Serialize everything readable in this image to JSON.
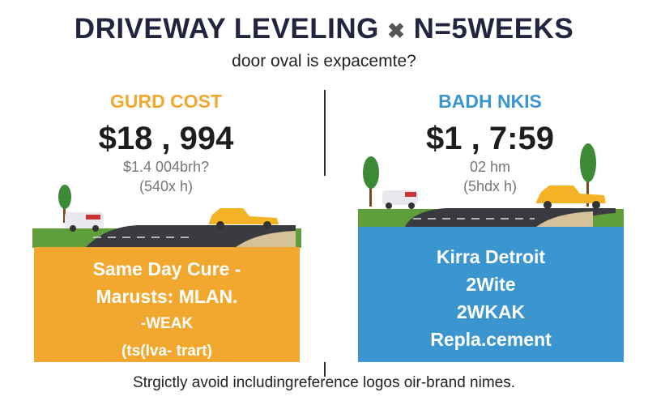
{
  "header": {
    "title": "DRIVEWAY LEVELING",
    "title_suffix": "N=5WEEKS",
    "subtitle": "door oval is expacemte?"
  },
  "left": {
    "heading": "GURD COST",
    "price": "$18 , 994",
    "detail_1": "$1.4 004brh?",
    "detail_2": "(540x h)",
    "box_lines": [
      "Same Day Cure -",
      "Marusts: MLAN.",
      "-WEAK",
      "(ts(lva- trart)"
    ],
    "accent_color": "#f2a82e"
  },
  "right": {
    "heading": "BADH NKIS",
    "price": "$1 , 7:59",
    "detail_1": "02 hm",
    "detail_2": "(5hdx h)",
    "box_lines": [
      "Kirra Detroit",
      "2Wite",
      "2WKAK",
      "Repla.cement"
    ],
    "accent_color": "#3b95cf"
  },
  "footer": {
    "note": "Strgictly avoid includingreference logos oir-brand nimes."
  }
}
